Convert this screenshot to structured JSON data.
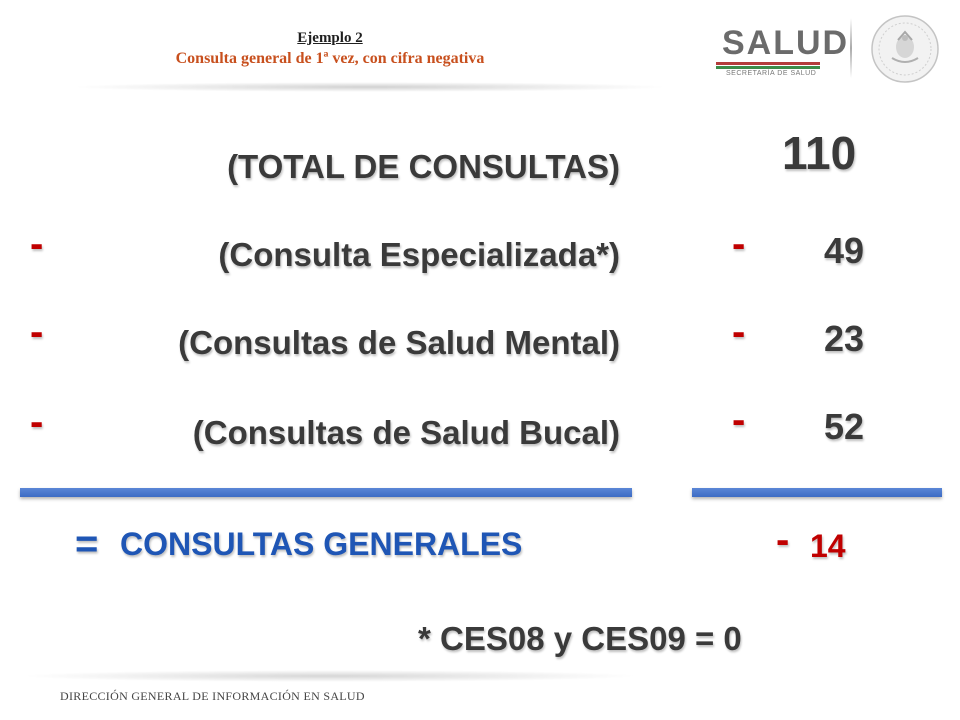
{
  "header": {
    "title": "Ejemplo 2",
    "subtitle": "Consulta general de 1ª vez, con cifra negativa"
  },
  "logo": {
    "name": "SALUD",
    "subtitle": "SECRETARÍA DE SALUD",
    "seal_icon": "mexico-coat-of-arms-seal"
  },
  "rows": [
    {
      "sign": "",
      "label": "(TOTAL DE CONSULTAS)",
      "value_sign": "",
      "value": "110"
    },
    {
      "sign": "-",
      "label": "(Consulta Especializada*)",
      "value_sign": "-",
      "value": "49"
    },
    {
      "sign": "-",
      "label": "(Consultas de Salud Mental)",
      "value_sign": "-",
      "value": "23"
    },
    {
      "sign": "-",
      "label": "(Consultas de Salud Bucal)",
      "value_sign": "-",
      "value": "52"
    }
  ],
  "result": {
    "equals": "=",
    "label": "CONSULTAS GENERALES",
    "sign": "-",
    "value": "14"
  },
  "footnote": "* CES08 y CES09 = 0",
  "footer": "DIRECCIÓN GENERAL DE INFORMACIÓN EN SALUD",
  "colors": {
    "accent_blue": "#1f56b5",
    "negative_red": "#c00000",
    "subtitle_orange": "#c8501e",
    "bar_blue": "#3c6bc4"
  }
}
